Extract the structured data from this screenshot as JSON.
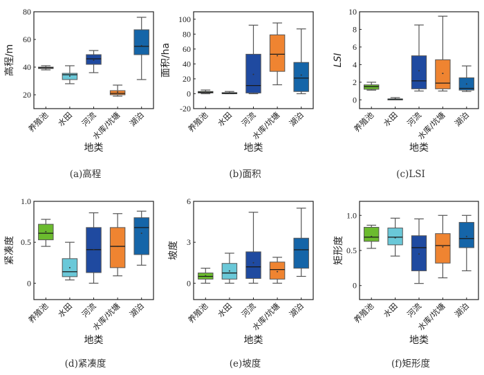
{
  "chart_data": [
    {
      "id": "a",
      "type": "box",
      "caption": "(a)高程",
      "title": "",
      "xlabel": "地类",
      "ylabel": "高程/m",
      "ylabel_italic": false,
      "ylim": [
        10,
        80
      ],
      "yticks": [
        20,
        40,
        60,
        80
      ],
      "ytick_labels": [
        "20",
        "40",
        "60",
        "80"
      ],
      "categories": [
        "养殖池",
        "水田",
        "河流",
        "水库/坑塘",
        "湖泊"
      ],
      "boxes": [
        {
          "whisker_low": 38,
          "q1": 39,
          "median": 39.5,
          "q3": 40,
          "whisker_high": 41,
          "mean": 39.5
        },
        {
          "whisker_low": 28,
          "q1": 31,
          "median": 34.5,
          "q3": 35.5,
          "whisker_high": 41,
          "mean": 33.5
        },
        {
          "whisker_low": 36,
          "q1": 42,
          "median": 46,
          "q3": 49,
          "whisker_high": 52,
          "mean": 45
        },
        {
          "whisker_low": 19,
          "q1": 20,
          "median": 21,
          "q3": 23,
          "whisker_high": 27,
          "mean": 22
        },
        {
          "whisker_low": 31,
          "q1": 49,
          "median": 55,
          "q3": 67,
          "whisker_high": 76,
          "mean": 55.5
        }
      ]
    },
    {
      "id": "b",
      "type": "box",
      "caption": "(b)面积",
      "title": "",
      "xlabel": "地类",
      "ylabel": "面积/ha",
      "ylabel_italic": false,
      "ylim": [
        -20,
        110
      ],
      "yticks": [
        -20,
        0,
        20,
        40,
        60,
        80,
        100
      ],
      "ytick_labels": [
        "-20",
        "0",
        "20",
        "40",
        "60",
        "80",
        "100"
      ],
      "categories": [
        "养殖池",
        "水田",
        "河流",
        "水库/坑塘",
        "湖泊"
      ],
      "boxes": [
        {
          "whisker_low": 0,
          "q1": 1,
          "median": 2,
          "q3": 3,
          "whisker_high": 5,
          "mean": 2
        },
        {
          "whisker_low": 0,
          "q1": 0,
          "median": 0.5,
          "q3": 1.5,
          "whisker_high": 3,
          "mean": 0.8
        },
        {
          "whisker_low": 0,
          "q1": 1,
          "median": 11,
          "q3": 53,
          "whisker_high": 92,
          "mean": 26
        },
        {
          "whisker_low": 12,
          "q1": 30,
          "median": 53,
          "q3": 79,
          "whisker_high": 95,
          "mean": 51
        },
        {
          "whisker_low": 0,
          "q1": 3,
          "median": 21,
          "q3": 42,
          "whisker_high": 87,
          "mean": 25
        }
      ]
    },
    {
      "id": "c",
      "type": "box",
      "caption": "(c)LSI",
      "title": "",
      "xlabel": "地类",
      "ylabel": "LSI",
      "ylabel_italic": true,
      "ylim": [
        -1,
        10
      ],
      "yticks": [
        0,
        2,
        4,
        6,
        8,
        10
      ],
      "ytick_labels": [
        "0",
        "2",
        "4",
        "6",
        "8",
        "10"
      ],
      "categories": [
        "养殖池",
        "水田",
        "河流",
        "水库/坑塘",
        "湖泊"
      ],
      "boxes": [
        {
          "whisker_low": 1.1,
          "q1": 1.2,
          "median": 1.5,
          "q3": 1.7,
          "whisker_high": 2.0,
          "mean": 1.5
        },
        {
          "whisker_low": 0,
          "q1": 0.05,
          "median": 0.08,
          "q3": 0.1,
          "whisker_high": 0.25,
          "mean": 0.1
        },
        {
          "whisker_low": 1.0,
          "q1": 1.25,
          "median": 2.15,
          "q3": 5.0,
          "whisker_high": 8.5,
          "mean": 3.3
        },
        {
          "whisker_low": 1.0,
          "q1": 1.25,
          "median": 1.9,
          "q3": 4.55,
          "whisker_high": 9.5,
          "mean": 3.0
        },
        {
          "whisker_low": 0.95,
          "q1": 1.1,
          "median": 1.3,
          "q3": 2.5,
          "whisker_high": 3.85,
          "mean": 1.8
        }
      ]
    },
    {
      "id": "d",
      "type": "box",
      "caption": "(d)紧凑度",
      "title": "",
      "xlabel": "地类",
      "ylabel": "紧凑度",
      "ylabel_italic": false,
      "ylim": [
        -0.2,
        1.0
      ],
      "yticks": [
        0,
        0.5,
        1.0
      ],
      "ytick_labels": [
        "0",
        "0.5",
        "1.0"
      ],
      "categories": [
        "养殖池",
        "水田",
        "河流",
        "水库/坑塘",
        "湖泊"
      ],
      "boxes": [
        {
          "whisker_low": 0.45,
          "q1": 0.53,
          "median": 0.61,
          "q3": 0.72,
          "whisker_high": 0.78,
          "mean": 0.63
        },
        {
          "whisker_low": 0.04,
          "q1": 0.08,
          "median": 0.14,
          "q3": 0.3,
          "whisker_high": 0.5,
          "mean": 0.19
        },
        {
          "whisker_low": 0.0,
          "q1": 0.13,
          "median": 0.41,
          "q3": 0.68,
          "whisker_high": 0.86,
          "mean": 0.41
        },
        {
          "whisker_low": 0.09,
          "q1": 0.19,
          "median": 0.45,
          "q3": 0.68,
          "whisker_high": 0.85,
          "mean": 0.45
        },
        {
          "whisker_low": 0.22,
          "q1": 0.35,
          "median": 0.68,
          "q3": 0.8,
          "whisker_high": 0.88,
          "mean": 0.61
        }
      ]
    },
    {
      "id": "e",
      "type": "box",
      "caption": "(e)坡度",
      "title": "",
      "xlabel": "地类",
      "ylabel": "坡度",
      "ylabel_italic": false,
      "ylim": [
        -1.2,
        6
      ],
      "yticks": [
        0,
        3,
        6
      ],
      "ytick_labels": [
        "0",
        "3",
        "6"
      ],
      "categories": [
        "养殖池",
        "水田",
        "河流",
        "水库/坑塘",
        "湖泊"
      ],
      "boxes": [
        {
          "whisker_low": 0,
          "q1": 0.3,
          "median": 0.5,
          "q3": 0.75,
          "whisker_high": 1.1,
          "mean": 0.55
        },
        {
          "whisker_low": 0,
          "q1": 0.3,
          "median": 0.75,
          "q3": 1.45,
          "whisker_high": 2.2,
          "mean": 0.9
        },
        {
          "whisker_low": 0,
          "q1": 0.35,
          "median": 1.2,
          "q3": 2.3,
          "whisker_high": 5.2,
          "mean": 1.5
        },
        {
          "whisker_low": 0,
          "q1": 0.3,
          "median": 1.0,
          "q3": 1.55,
          "whisker_high": 1.9,
          "mean": 0.85
        },
        {
          "whisker_low": 0.5,
          "q1": 1.1,
          "median": 2.45,
          "q3": 3.3,
          "whisker_high": 5.5,
          "mean": 2.45
        }
      ]
    },
    {
      "id": "f",
      "type": "box",
      "caption": "(f)矩形度",
      "title": "",
      "xlabel": "地类",
      "ylabel": "矩形度",
      "ylabel_italic": false,
      "ylim": [
        -0.2,
        1.2
      ],
      "yticks": [
        0,
        0.5,
        1.0
      ],
      "ytick_labels": [
        "0",
        "0.5",
        "1.0"
      ],
      "categories": [
        "养殖池",
        "水田",
        "河流",
        "水库/坑塘",
        "湖泊"
      ],
      "boxes": [
        {
          "whisker_low": 0.53,
          "q1": 0.63,
          "median": 0.69,
          "q3": 0.83,
          "whisker_high": 0.86,
          "mean": 0.7
        },
        {
          "whisker_low": 0.42,
          "q1": 0.58,
          "median": 0.69,
          "q3": 0.82,
          "whisker_high": 0.96,
          "mean": 0.68
        },
        {
          "whisker_low": 0.03,
          "q1": 0.21,
          "median": 0.54,
          "q3": 0.71,
          "whisker_high": 0.95,
          "mean": 0.45
        },
        {
          "whisker_low": 0.11,
          "q1": 0.32,
          "median": 0.57,
          "q3": 0.74,
          "whisker_high": 1.0,
          "mean": 0.55
        },
        {
          "whisker_low": 0.21,
          "q1": 0.54,
          "median": 0.67,
          "q3": 0.9,
          "whisker_high": 1.0,
          "mean": 0.7
        }
      ]
    }
  ],
  "colors": {
    "categories": [
      "#6bbb2e",
      "#6ac8d8",
      "#1f4aa0",
      "#ef8431",
      "#1565a8"
    ],
    "axis": "#222222",
    "whisker": "#555555",
    "median": "#1a1a1a"
  }
}
